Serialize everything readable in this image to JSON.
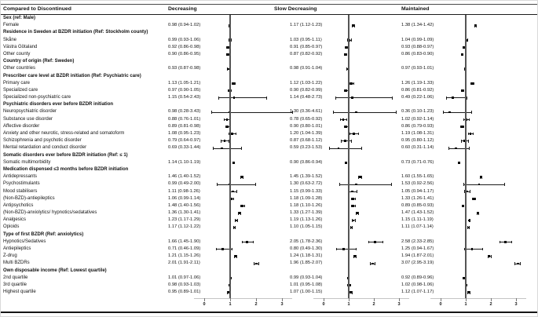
{
  "header": {
    "label_col": "Compared to Discontinued",
    "columns": [
      "Decreasing",
      "Slow Decreasing",
      "Maintained"
    ]
  },
  "axis": {
    "ticks": [
      0,
      1,
      2,
      3
    ],
    "ref_value": 1
  },
  "chart_data": {
    "type": "forest",
    "title": "Compared to Discontinued",
    "legend_position": "none",
    "columns": [
      "Decreasing",
      "Slow Decreasing",
      "Maintained"
    ],
    "value_format": "estimate (lower-upper)",
    "x_ticks": [
      0,
      1,
      2,
      3
    ],
    "x_reference_line": 1,
    "rows": [
      {
        "label": "Sex (ref: Male)",
        "header": true
      },
      {
        "label": "Female",
        "decreasing": [
          0.98,
          0.94,
          1.02
        ],
        "slow_decreasing": [
          1.17,
          1.12,
          1.23
        ],
        "maintained": [
          1.38,
          1.34,
          1.42
        ]
      },
      {
        "label": "Residence in Sweden at BZDR initiation (Ref: Stockholm county)",
        "header": true
      },
      {
        "label": "Skåne",
        "decreasing": [
          0.99,
          0.93,
          1.06
        ],
        "slow_decreasing": [
          1.03,
          0.95,
          1.11
        ],
        "maintained": [
          1.04,
          0.99,
          1.09
        ]
      },
      {
        "label": "Västra Götaland",
        "decreasing": [
          0.92,
          0.86,
          0.98
        ],
        "slow_decreasing": [
          0.91,
          0.85,
          0.97
        ],
        "maintained": [
          0.93,
          0.88,
          0.97
        ]
      },
      {
        "label": "Other county",
        "decreasing": [
          0.9,
          0.86,
          0.95
        ],
        "slow_decreasing": [
          0.87,
          0.82,
          0.92
        ],
        "maintained": [
          0.86,
          0.83,
          0.9
        ]
      },
      {
        "label": "Country of origin (Ref: Sweden)",
        "header": true
      },
      {
        "label": "Other countries",
        "decreasing": [
          0.93,
          0.87,
          0.98
        ],
        "slow_decreasing": [
          0.98,
          0.91,
          1.04
        ],
        "maintained": [
          0.97,
          0.93,
          1.01
        ]
      },
      {
        "label": "Prescriber care level at BZDR initiation (Ref: Psychiatric care)",
        "header": true
      },
      {
        "label": "Primary care",
        "decreasing": [
          1.13,
          1.05,
          1.21
        ],
        "slow_decreasing": [
          1.12,
          1.03,
          1.22
        ],
        "maintained": [
          1.26,
          1.19,
          1.33
        ]
      },
      {
        "label": "Specialized care",
        "decreasing": [
          0.97,
          0.9,
          1.05
        ],
        "slow_decreasing": [
          0.9,
          0.82,
          0.99
        ],
        "maintained": [
          0.86,
          0.81,
          0.92
        ]
      },
      {
        "label": "Specialized non-psychiatric care",
        "decreasing": [
          1.15,
          0.54,
          2.43
        ],
        "slow_decreasing": [
          1.14,
          0.48,
          2.73
        ],
        "maintained": [
          0.49,
          0.22,
          1.06
        ]
      },
      {
        "label": "Psychiatric disorders ever before BZDR initiation",
        "header": true
      },
      {
        "label": "Neuropsychiatric disorder",
        "decreasing": [
          0.98,
          0.28,
          3.43
        ],
        "slow_decreasing": [
          1.3,
          0.36,
          4.61
        ],
        "maintained": [
          0.36,
          0.1,
          1.23
        ]
      },
      {
        "label": "Substance use disorder",
        "decreasing": [
          0.88,
          0.76,
          1.01
        ],
        "slow_decreasing": [
          0.78,
          0.65,
          0.92
        ],
        "maintained": [
          1.02,
          0.92,
          1.14
        ]
      },
      {
        "label": "Affective disorder",
        "decreasing": [
          0.89,
          0.81,
          0.98
        ],
        "slow_decreasing": [
          0.9,
          0.8,
          1.01
        ],
        "maintained": [
          0.86,
          0.79,
          0.93
        ]
      },
      {
        "label": "Anxiety and other neurotic, stress-related and somatoform",
        "decreasing": [
          1.08,
          0.95,
          1.23
        ],
        "slow_decreasing": [
          1.2,
          1.04,
          1.39
        ],
        "maintained": [
          1.19,
          1.08,
          1.31
        ]
      },
      {
        "label": "Schizophrenia and psychotic disorder",
        "decreasing": [
          0.79,
          0.64,
          0.97
        ],
        "slow_decreasing": [
          0.87,
          0.68,
          1.12
        ],
        "maintained": [
          0.95,
          0.8,
          1.12
        ]
      },
      {
        "label": "Mental retardation and conduct disorder",
        "decreasing": [
          0.69,
          0.33,
          1.44
        ],
        "slow_decreasing": [
          0.59,
          0.23,
          1.53
        ],
        "maintained": [
          0.6,
          0.31,
          1.14
        ]
      },
      {
        "label": "Somatic disorders ever before BZDR initiation (Ref: ≤ 1)",
        "header": true
      },
      {
        "label": "Somatic multimorbidity",
        "decreasing": [
          1.14,
          1.1,
          1.19
        ],
        "slow_decreasing": [
          0.9,
          0.86,
          0.94
        ],
        "maintained": [
          0.73,
          0.71,
          0.76
        ]
      },
      {
        "label": "Medication dispensed ≤3 months before BZDR initiation",
        "header": true
      },
      {
        "label": "Antidepressants",
        "decreasing": [
          1.46,
          1.4,
          1.52
        ],
        "slow_decreasing": [
          1.45,
          1.39,
          1.52
        ],
        "maintained": [
          1.6,
          1.55,
          1.65
        ]
      },
      {
        "label": "Psychostimulants",
        "decreasing": [
          0.99,
          0.49,
          2.0
        ],
        "slow_decreasing": [
          1.3,
          0.63,
          2.72
        ],
        "maintained": [
          1.53,
          0.92,
          2.56
        ]
      },
      {
        "label": "Mood stabilisers",
        "decreasing": [
          1.11,
          0.98,
          1.26
        ],
        "slow_decreasing": [
          1.15,
          0.99,
          1.33
        ],
        "maintained": [
          1.05,
          0.94,
          1.17
        ]
      },
      {
        "label": "(Non-BZD)-antiepileptics",
        "decreasing": [
          1.06,
          0.99,
          1.14
        ],
        "slow_decreasing": [
          1.18,
          1.09,
          1.28
        ],
        "maintained": [
          1.33,
          1.26,
          1.41
        ]
      },
      {
        "label": "Antipsychotics",
        "decreasing": [
          1.48,
          1.4,
          1.56
        ],
        "slow_decreasing": [
          1.18,
          1.1,
          1.26
        ],
        "maintained": [
          0.89,
          0.85,
          0.93
        ]
      },
      {
        "label": "(Non-BZD)-anxiolytics/ hypnotics/sedatatives",
        "decreasing": [
          1.36,
          1.3,
          1.41
        ],
        "slow_decreasing": [
          1.33,
          1.27,
          1.39
        ],
        "maintained": [
          1.47,
          1.43,
          1.52
        ]
      },
      {
        "label": "Analgesics",
        "decreasing": [
          1.23,
          1.17,
          1.29
        ],
        "slow_decreasing": [
          1.19,
          1.13,
          1.26
        ],
        "maintained": [
          1.15,
          1.11,
          1.19
        ]
      },
      {
        "label": "Opioids",
        "decreasing": [
          1.17,
          1.12,
          1.22
        ],
        "slow_decreasing": [
          1.1,
          1.05,
          1.15
        ],
        "maintained": [
          1.11,
          1.07,
          1.14
        ]
      },
      {
        "label": "Type of first BZDR (Ref: anxiolytics)",
        "header": true
      },
      {
        "label": "Hypnotics/Sedatives",
        "decreasing": [
          1.66,
          1.45,
          1.9
        ],
        "slow_decreasing": [
          2.05,
          1.78,
          2.36
        ],
        "maintained": [
          2.58,
          2.33,
          2.85
        ]
      },
      {
        "label": "Antiepileptics",
        "decreasing": [
          0.71,
          0.46,
          1.09
        ],
        "slow_decreasing": [
          0.8,
          0.49,
          1.3
        ],
        "maintained": [
          1.25,
          0.94,
          1.67
        ]
      },
      {
        "label": "Z-drug",
        "decreasing": [
          1.21,
          1.15,
          1.26
        ],
        "slow_decreasing": [
          1.24,
          1.18,
          1.31
        ],
        "maintained": [
          1.94,
          1.87,
          2.01
        ]
      },
      {
        "label": "Multi BZDRs",
        "decreasing": [
          2.01,
          1.91,
          2.11
        ],
        "slow_decreasing": [
          1.96,
          1.85,
          2.07
        ],
        "maintained": [
          3.07,
          2.95,
          3.19
        ]
      },
      {
        "label": "Own disposable income (Ref: Lowest quartile)",
        "header": true
      },
      {
        "label": "2nd quartile",
        "decreasing": [
          1.01,
          0.97,
          1.06
        ],
        "slow_decreasing": [
          0.99,
          0.93,
          1.04
        ],
        "maintained": [
          0.92,
          0.89,
          0.96
        ]
      },
      {
        "label": "3rd quartile",
        "decreasing": [
          0.98,
          0.93,
          1.03
        ],
        "slow_decreasing": [
          1.01,
          0.95,
          1.08
        ],
        "maintained": [
          1.02,
          0.98,
          1.06
        ]
      },
      {
        "label": "Highest quartile",
        "decreasing": [
          0.95,
          0.89,
          1.01
        ],
        "slow_decreasing": [
          1.07,
          1.0,
          1.15
        ],
        "maintained": [
          1.12,
          1.07,
          1.17
        ]
      }
    ]
  },
  "colors": {
    "text": "#111111",
    "marker": "#000000",
    "ci_line": "#1a1a1a",
    "reference_line": "#555555",
    "axis_line": "#c4c4c4",
    "rule": "#161616"
  }
}
